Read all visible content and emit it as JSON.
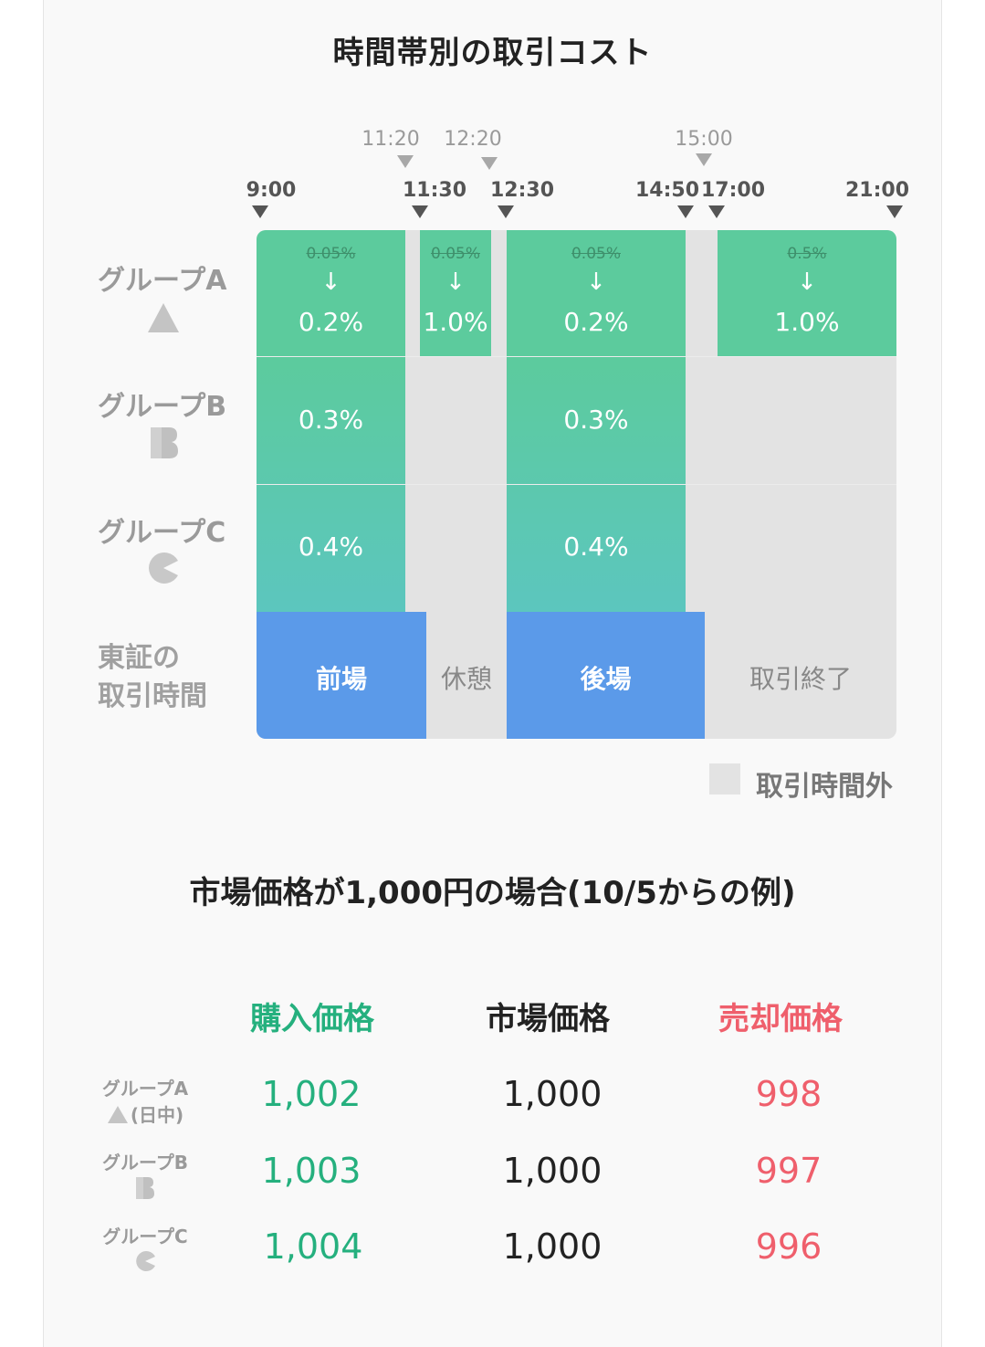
{
  "schedule": {
    "title": "時間帯別の取引コスト",
    "times_top": [
      "11:20",
      "12:20",
      "15:00"
    ],
    "times_main": [
      "9:00",
      "11:30",
      "12:30",
      "14:50",
      "17:00",
      "21:00"
    ],
    "rows": [
      {
        "label": "グループA",
        "icon": "triangle-icon"
      },
      {
        "label": "グループB",
        "icon": "letter-b-icon"
      },
      {
        "label": "グループC",
        "icon": "pacman-icon"
      }
    ],
    "session_label": [
      "東証の",
      "取引時間"
    ],
    "group_a": [
      {
        "old": "0.05%",
        "arrow": "↓",
        "new": "0.2%"
      },
      {
        "old": "0.05%",
        "arrow": "↓",
        "new": "1.0%"
      },
      {
        "old": "0.05%",
        "arrow": "↓",
        "new": "0.2%"
      },
      {
        "old": "0.5%",
        "arrow": "↓",
        "new": "1.0%"
      }
    ],
    "group_b": [
      "0.3%",
      "0.3%"
    ],
    "group_c": [
      "0.4%",
      "0.4%"
    ],
    "sessions": [
      "前場",
      "休憩",
      "後場",
      "取引終了"
    ],
    "legend": "取引時間外",
    "colors": {
      "in_hours": "#5ccb9d",
      "session": "#5b9ae9",
      "off_hours": "#e3e3e3"
    }
  },
  "example": {
    "title": "市場価格が1,000円の場合(10/5からの例)",
    "headers": {
      "buy": "購入価格",
      "market": "市場価格",
      "sell": "売却価格"
    },
    "rows": [
      {
        "label": "グループA",
        "sub": "(日中)",
        "buy": "1,002",
        "market": "1,000",
        "sell": "998"
      },
      {
        "label": "グループB",
        "sub": "",
        "buy": "1,003",
        "market": "1,000",
        "sell": "997"
      },
      {
        "label": "グループC",
        "sub": "",
        "buy": "1,004",
        "market": "1,000",
        "sell": "996"
      }
    ]
  }
}
